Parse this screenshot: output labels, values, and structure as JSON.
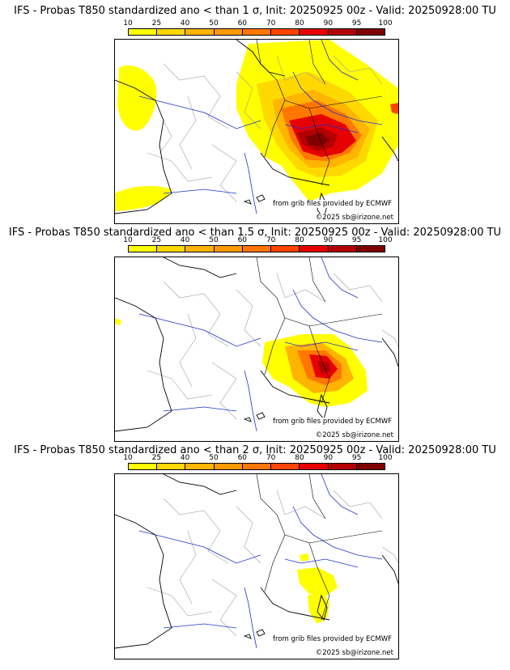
{
  "panels": [
    {
      "title": "IFS - Probas T850  standardized ano < than 1 σ, Init: 20250925 00z - Valid: 20250928:00 TU"
    },
    {
      "title": "IFS - Probas T850  standardized ano < than 1.5 σ, Init: 20250925 00z - Valid: 20250928:00 TU"
    },
    {
      "title": "IFS - Probas T850  standardized ano < than 2 σ, Init: 20250925 00z - Valid: 20250928:00 TU"
    }
  ],
  "colorbar": {
    "ticks": [
      "10",
      "25",
      "40",
      "50",
      "60",
      "70",
      "80",
      "90",
      "95",
      "100"
    ],
    "colors": [
      "#ffff00",
      "#ffd800",
      "#ffb400",
      "#ff9900",
      "#ff7700",
      "#ff4400",
      "#e60000",
      "#b30000",
      "#800000"
    ]
  },
  "credits": {
    "source": "from grib files provided by ECMWF",
    "copyright": "©2025 sb@irizone.net"
  },
  "map_layers": {
    "coast_color": "#000000",
    "border_color": "#000000",
    "river_color": "#2233cc",
    "admin_color": "#a0a0a0"
  }
}
